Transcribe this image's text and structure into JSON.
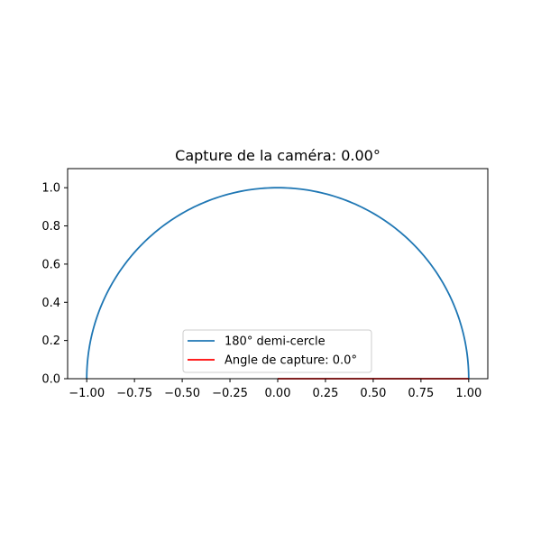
{
  "chart_data": {
    "type": "line",
    "title": "Capture de la caméra: 0.00°",
    "xlabel": "",
    "ylabel": "",
    "xlim": [
      -1.1,
      1.1
    ],
    "ylim": [
      0,
      1.1
    ],
    "grid": false,
    "legend_placement": "lower-center",
    "x_ticks": [
      -1.0,
      -0.75,
      -0.5,
      -0.25,
      0.0,
      0.25,
      0.5,
      0.75,
      1.0
    ],
    "x_tick_labels": [
      "−1.00",
      "−0.75",
      "−0.50",
      "−0.25",
      "0.00",
      "0.25",
      "0.50",
      "0.75",
      "1.00"
    ],
    "y_ticks": [
      0.0,
      0.2,
      0.4,
      0.6,
      0.8,
      1.0
    ],
    "y_tick_labels": [
      "0.0",
      "0.2",
      "0.4",
      "0.6",
      "0.8",
      "1.0"
    ],
    "series": [
      {
        "name": "180° demi-cercle",
        "color": "#1f77b4",
        "kind": "semicircle",
        "radius": 1.0,
        "angle_range_deg": [
          0,
          180
        ]
      },
      {
        "name": "Angle de capture: 0.0°",
        "color": "#ff0000",
        "kind": "segment",
        "x": [
          0.0,
          1.0
        ],
        "y": [
          0.0,
          0.0
        ]
      }
    ]
  }
}
